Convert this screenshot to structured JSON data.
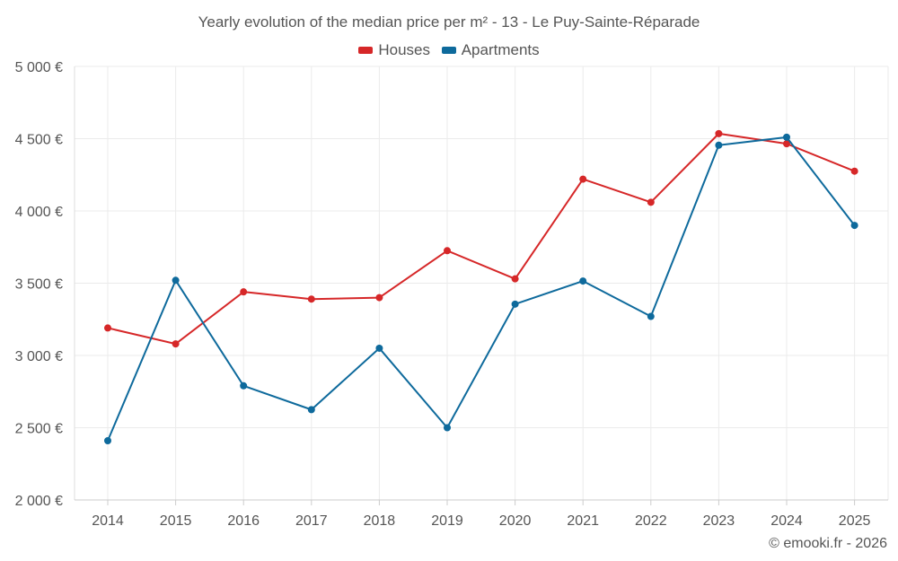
{
  "chart_data": {
    "type": "line",
    "title": "Yearly evolution of the median price per m² - 13 - Le Puy-Sainte-Réparade",
    "xlabel": "",
    "ylabel": "",
    "categories": [
      "2014",
      "2015",
      "2016",
      "2017",
      "2018",
      "2019",
      "2020",
      "2021",
      "2022",
      "2023",
      "2024",
      "2025"
    ],
    "ylim": [
      2000,
      5000
    ],
    "yticks": [
      2000,
      2500,
      3000,
      3500,
      4000,
      4500,
      5000
    ],
    "ytick_labels": [
      "2 000 €",
      "2 500 €",
      "3 000 €",
      "3 500 €",
      "4 000 €",
      "4 500 €",
      "5 000 €"
    ],
    "grid": true,
    "legend_position": "top-center",
    "series": [
      {
        "name": "Houses",
        "color": "#d62728",
        "values": [
          3190,
          3080,
          3440,
          3390,
          3400,
          3725,
          3530,
          4220,
          4060,
          4535,
          4465,
          4275
        ]
      },
      {
        "name": "Apartments",
        "color": "#0e6a9c",
        "values": [
          2410,
          3520,
          2790,
          2625,
          3050,
          2500,
          3355,
          3515,
          3270,
          4455,
          4510,
          3900
        ]
      }
    ]
  },
  "copyright": "© emooki.fr - 2026"
}
